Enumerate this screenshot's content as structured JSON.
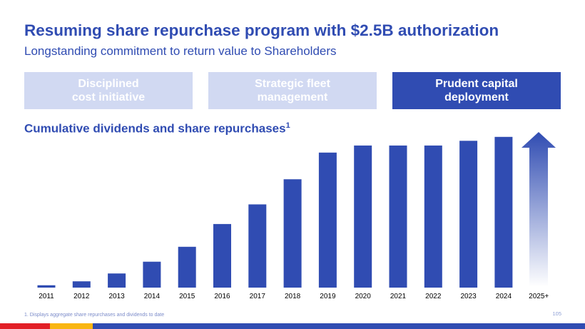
{
  "title": "Resuming share repurchase program with $2.5B authorization",
  "subtitle": "Longstanding commitment to return value to Shareholders",
  "pillars": [
    {
      "label": "Disciplined\ncost initiative",
      "active": false
    },
    {
      "label": "Strategic fleet\nmanagement",
      "active": false
    },
    {
      "label": "Prudent capital\ndeployment",
      "active": true
    }
  ],
  "section": {
    "title": "Cumulative dividends and share repurchases",
    "footnote_ref": "1"
  },
  "chart_data": {
    "type": "bar",
    "title": "Cumulative dividends and share repurchases",
    "categories": [
      "2011",
      "2012",
      "2013",
      "2014",
      "2015",
      "2016",
      "2017",
      "2018",
      "2019",
      "2020",
      "2021",
      "2022",
      "2023",
      "2024",
      "2025+"
    ],
    "values": [
      1.5,
      4,
      9,
      16.5,
      26,
      40.5,
      53,
      69,
      86,
      90.5,
      90.5,
      90.5,
      93.5,
      96,
      null
    ],
    "ylim": [
      0,
      100
    ],
    "xlabel": "",
    "ylabel": "",
    "grid": false,
    "bar_color": "#304cb2",
    "arrow_category": "2025+"
  },
  "footnote": "1. Displays aggregate share repurchases and dividends to date",
  "page_number": "105",
  "colors": {
    "brand_blue": "#304cb2",
    "light_pill": "#d1d9f2",
    "red": "#e21f26",
    "yellow": "#f9b612"
  }
}
